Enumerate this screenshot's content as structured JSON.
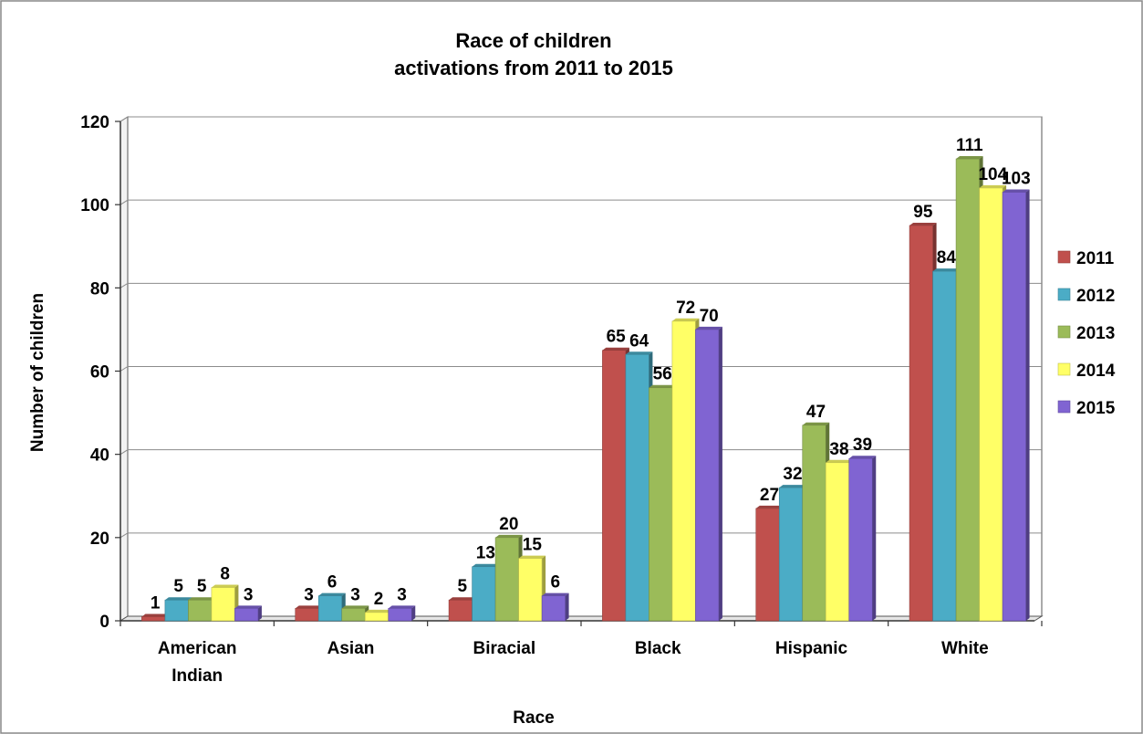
{
  "chart_data": {
    "type": "bar",
    "title": [
      "Race of children",
      "activations from 2011 to 2015"
    ],
    "xlabel": "Race",
    "ylabel": "Number of children",
    "ylim": [
      0,
      120
    ],
    "yticks": [
      0,
      20,
      40,
      60,
      80,
      100,
      120
    ],
    "grid": true,
    "legend_position": "right",
    "categories": [
      [
        "American",
        "Indian"
      ],
      [
        "Asian"
      ],
      [
        "Biracial"
      ],
      [
        "Black"
      ],
      [
        "Hispanic"
      ],
      [
        "White"
      ]
    ],
    "series": [
      {
        "name": "2011",
        "color": "#C0504D",
        "values": [
          1,
          3,
          5,
          65,
          27,
          95
        ]
      },
      {
        "name": "2012",
        "color": "#4BACC6",
        "values": [
          5,
          6,
          13,
          64,
          32,
          84
        ]
      },
      {
        "name": "2013",
        "color": "#9BBB59",
        "values": [
          5,
          3,
          20,
          56,
          47,
          111
        ]
      },
      {
        "name": "2014",
        "color": "#FFFF66",
        "values": [
          8,
          2,
          15,
          72,
          38,
          104
        ]
      },
      {
        "name": "2015",
        "color": "#8064D2",
        "values": [
          3,
          3,
          6,
          70,
          39,
          103
        ]
      }
    ]
  }
}
